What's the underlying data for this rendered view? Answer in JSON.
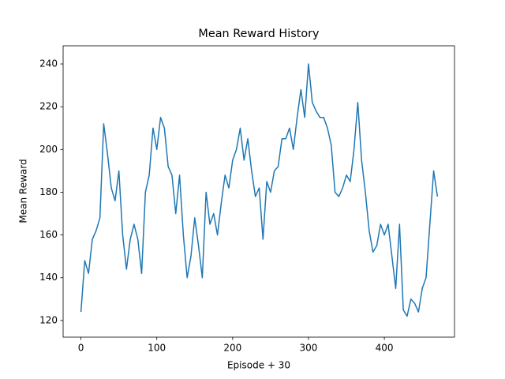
{
  "chart_data": {
    "type": "line",
    "title": "Mean Reward History",
    "x_label": "Episode + 30",
    "y_label": "Mean Reward",
    "x": [
      0,
      5,
      10,
      15,
      20,
      25,
      30,
      35,
      40,
      45,
      50,
      55,
      60,
      65,
      70,
      75,
      80,
      85,
      90,
      95,
      100,
      105,
      110,
      115,
      120,
      125,
      130,
      135,
      140,
      145,
      150,
      155,
      160,
      165,
      170,
      175,
      180,
      185,
      190,
      195,
      200,
      205,
      210,
      215,
      220,
      225,
      230,
      235,
      240,
      245,
      250,
      255,
      260,
      265,
      270,
      275,
      280,
      285,
      290,
      295,
      300,
      305,
      310,
      315,
      320,
      325,
      330,
      335,
      340,
      345,
      350,
      355,
      360,
      365,
      370,
      375,
      380,
      385,
      390,
      395,
      400,
      405,
      410,
      415,
      420,
      425,
      430,
      435,
      440,
      445,
      450,
      455,
      460,
      465,
      470
    ],
    "series": [
      {
        "name": "Mean Reward",
        "color": "#1f77b4",
        "values": [
          124,
          148,
          142,
          158,
          162,
          168,
          212,
          198,
          182,
          176,
          190,
          160,
          144,
          158,
          165,
          158,
          142,
          180,
          188,
          210,
          200,
          215,
          210,
          192,
          188,
          170,
          188,
          160,
          140,
          150,
          168,
          155,
          140,
          180,
          165,
          170,
          160,
          175,
          188,
          182,
          195,
          200,
          210,
          195,
          205,
          190,
          178,
          182,
          158,
          185,
          180,
          190,
          192,
          205,
          205,
          210,
          200,
          215,
          228,
          215,
          240,
          222,
          218,
          215,
          215,
          210,
          202,
          180,
          178,
          182,
          188,
          185,
          200,
          222,
          195,
          180,
          162,
          152,
          155,
          165,
          160,
          165,
          150,
          135,
          165,
          125,
          122,
          130,
          128,
          124,
          135,
          140,
          165,
          190,
          178
        ]
      }
    ],
    "xlim": [
      -23.5,
      492.5
    ],
    "ylim": [
      112.2,
      248.5
    ],
    "xticks": [
      0,
      100,
      200,
      300,
      400
    ],
    "yticks": [
      120,
      140,
      160,
      180,
      200,
      220,
      240
    ],
    "grid": false
  }
}
